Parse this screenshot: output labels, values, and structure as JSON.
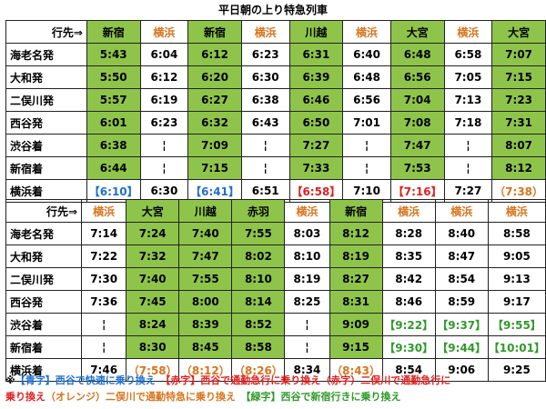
{
  "title": "平日朝の上り特急列車",
  "header_label": "行先⇒",
  "colors": {
    "green_bg": "#8fc44a",
    "yokohama_text": "#d8741c",
    "blue": "#1e6fd0",
    "red": "#e02020",
    "orange": "#d8741c",
    "green_text": "#2f9a2a"
  },
  "tables": [
    {
      "dest": [
        {
          "t": "新宿",
          "c": "g"
        },
        {
          "t": "横浜",
          "c": "hk"
        },
        {
          "t": "新宿",
          "c": "g"
        },
        {
          "t": "横浜",
          "c": "hk"
        },
        {
          "t": "川越",
          "c": "g"
        },
        {
          "t": "横浜",
          "c": "hk"
        },
        {
          "t": "大宮",
          "c": "g"
        },
        {
          "t": "横浜",
          "c": "hk"
        },
        {
          "t": "大宮",
          "c": "g"
        }
      ],
      "rows": [
        {
          "label": "海老名発",
          "cells": [
            {
              "t": "5:43",
              "c": "g"
            },
            {
              "t": "6:04",
              "c": ""
            },
            {
              "t": "6:12",
              "c": "g"
            },
            {
              "t": "6:23",
              "c": ""
            },
            {
              "t": "6:31",
              "c": "g"
            },
            {
              "t": "6:40",
              "c": ""
            },
            {
              "t": "6:48",
              "c": "g"
            },
            {
              "t": "6:58",
              "c": ""
            },
            {
              "t": "7:07",
              "c": "g"
            }
          ]
        },
        {
          "label": "大和発",
          "cells": [
            {
              "t": "5:50",
              "c": "g"
            },
            {
              "t": "6:12",
              "c": ""
            },
            {
              "t": "6:20",
              "c": "g"
            },
            {
              "t": "6:30",
              "c": ""
            },
            {
              "t": "6:39",
              "c": "g"
            },
            {
              "t": "6:48",
              "c": ""
            },
            {
              "t": "6:56",
              "c": "g"
            },
            {
              "t": "7:05",
              "c": ""
            },
            {
              "t": "7:15",
              "c": "g"
            }
          ]
        },
        {
          "label": "二俣川発",
          "cells": [
            {
              "t": "5:57",
              "c": "g"
            },
            {
              "t": "6:19",
              "c": ""
            },
            {
              "t": "6:27",
              "c": "g"
            },
            {
              "t": "6:38",
              "c": ""
            },
            {
              "t": "6:46",
              "c": "g"
            },
            {
              "t": "6:56",
              "c": ""
            },
            {
              "t": "7:04",
              "c": "g"
            },
            {
              "t": "7:13",
              "c": ""
            },
            {
              "t": "7:23",
              "c": "g"
            }
          ]
        },
        {
          "label": "西谷発",
          "cells": [
            {
              "t": "6:01",
              "c": "g"
            },
            {
              "t": "6:23",
              "c": ""
            },
            {
              "t": "6:32",
              "c": "g"
            },
            {
              "t": "6:43",
              "c": ""
            },
            {
              "t": "6:50",
              "c": "g"
            },
            {
              "t": "7:01",
              "c": ""
            },
            {
              "t": "7:08",
              "c": "g"
            },
            {
              "t": "7:18",
              "c": ""
            },
            {
              "t": "7:31",
              "c": "g"
            }
          ]
        },
        {
          "label": "渋谷着",
          "cells": [
            {
              "t": "6:38",
              "c": "g"
            },
            {
              "t": "¦",
              "c": ""
            },
            {
              "t": "7:09",
              "c": "g"
            },
            {
              "t": "¦",
              "c": ""
            },
            {
              "t": "7:27",
              "c": "g"
            },
            {
              "t": "¦",
              "c": ""
            },
            {
              "t": "7:47",
              "c": "g"
            },
            {
              "t": "¦",
              "c": ""
            },
            {
              "t": "8:07",
              "c": "g"
            }
          ]
        },
        {
          "label": "新宿着",
          "cells": [
            {
              "t": "6:44",
              "c": "g"
            },
            {
              "t": "¦",
              "c": ""
            },
            {
              "t": "7:15",
              "c": "g"
            },
            {
              "t": "¦",
              "c": ""
            },
            {
              "t": "7:33",
              "c": "g"
            },
            {
              "t": "¦",
              "c": ""
            },
            {
              "t": "7:53",
              "c": "g"
            },
            {
              "t": "¦",
              "c": ""
            },
            {
              "t": "8:12",
              "c": "g"
            }
          ]
        },
        {
          "label": "横浜着",
          "cells": [
            {
              "t": "【6:10】",
              "c": "blue"
            },
            {
              "t": "6:30",
              "c": ""
            },
            {
              "t": "【6:41】",
              "c": "blue"
            },
            {
              "t": "6:51",
              "c": ""
            },
            {
              "t": "【6:58】",
              "c": "red"
            },
            {
              "t": "7:10",
              "c": ""
            },
            {
              "t": "【7:16】",
              "c": "red"
            },
            {
              "t": "7:27",
              "c": ""
            },
            {
              "t": "（7:38）",
              "c": "orange"
            }
          ]
        }
      ]
    },
    {
      "dest": [
        {
          "t": "横浜",
          "c": "hk"
        },
        {
          "t": "大宮",
          "c": "g"
        },
        {
          "t": "川越",
          "c": "g"
        },
        {
          "t": "赤羽",
          "c": "g"
        },
        {
          "t": "横浜",
          "c": "hk"
        },
        {
          "t": "新宿",
          "c": "g"
        },
        {
          "t": "横浜",
          "c": "hk"
        },
        {
          "t": "横浜",
          "c": "hk"
        },
        {
          "t": "横浜",
          "c": "hk"
        }
      ],
      "rows": [
        {
          "label": "海老名発",
          "cells": [
            {
              "t": "7:14",
              "c": ""
            },
            {
              "t": "7:24",
              "c": "g"
            },
            {
              "t": "7:40",
              "c": "g"
            },
            {
              "t": "7:55",
              "c": "g"
            },
            {
              "t": "8:03",
              "c": ""
            },
            {
              "t": "8:12",
              "c": "g"
            },
            {
              "t": "8:28",
              "c": ""
            },
            {
              "t": "8:40",
              "c": ""
            },
            {
              "t": "8:58",
              "c": ""
            }
          ]
        },
        {
          "label": "大和発",
          "cells": [
            {
              "t": "7:22",
              "c": ""
            },
            {
              "t": "7:32",
              "c": "g"
            },
            {
              "t": "7:47",
              "c": "g"
            },
            {
              "t": "8:02",
              "c": "g"
            },
            {
              "t": "8:10",
              "c": ""
            },
            {
              "t": "8:19",
              "c": "g"
            },
            {
              "t": "8:35",
              "c": ""
            },
            {
              "t": "8:47",
              "c": ""
            },
            {
              "t": "9:05",
              "c": ""
            }
          ]
        },
        {
          "label": "二俣川発",
          "cells": [
            {
              "t": "7:30",
              "c": ""
            },
            {
              "t": "7:40",
              "c": "g"
            },
            {
              "t": "7:55",
              "c": "g"
            },
            {
              "t": "8:10",
              "c": "g"
            },
            {
              "t": "8:19",
              "c": ""
            },
            {
              "t": "8:27",
              "c": "g"
            },
            {
              "t": "8:42",
              "c": ""
            },
            {
              "t": "8:54",
              "c": ""
            },
            {
              "t": "9:13",
              "c": ""
            }
          ]
        },
        {
          "label": "西谷発",
          "cells": [
            {
              "t": "7:36",
              "c": ""
            },
            {
              "t": "7:45",
              "c": "g"
            },
            {
              "t": "8:00",
              "c": "g"
            },
            {
              "t": "8:14",
              "c": "g"
            },
            {
              "t": "8:25",
              "c": ""
            },
            {
              "t": "8:31",
              "c": "g"
            },
            {
              "t": "8:46",
              "c": ""
            },
            {
              "t": "8:59",
              "c": ""
            },
            {
              "t": "9:17",
              "c": ""
            }
          ]
        },
        {
          "label": "渋谷着",
          "cells": [
            {
              "t": "¦",
              "c": ""
            },
            {
              "t": "8:24",
              "c": "g"
            },
            {
              "t": "8:39",
              "c": "g"
            },
            {
              "t": "8:52",
              "c": "g"
            },
            {
              "t": "¦",
              "c": ""
            },
            {
              "t": "9:09",
              "c": "g"
            },
            {
              "t": "【9:22】",
              "c": "green"
            },
            {
              "t": "【9:37】",
              "c": "green"
            },
            {
              "t": "【9:55】",
              "c": "green"
            }
          ]
        },
        {
          "label": "新宿着",
          "cells": [
            {
              "t": "¦",
              "c": ""
            },
            {
              "t": "8:30",
              "c": "g"
            },
            {
              "t": "8:45",
              "c": "g"
            },
            {
              "t": "8:58",
              "c": "g"
            },
            {
              "t": "¦",
              "c": ""
            },
            {
              "t": "9:15",
              "c": "g"
            },
            {
              "t": "【9:30】",
              "c": "green"
            },
            {
              "t": "【9:44】",
              "c": "green"
            },
            {
              "t": "【10:01】",
              "c": "green"
            }
          ]
        },
        {
          "label": "横浜着",
          "cells": [
            {
              "t": "7:46",
              "c": ""
            },
            {
              "t": "（7:58）",
              "c": "orange"
            },
            {
              "t": "（8:12）",
              "c": "orange"
            },
            {
              "t": "（8:26）",
              "c": "orange"
            },
            {
              "t": "8:34",
              "c": ""
            },
            {
              "t": "（8:43）",
              "c": "orange"
            },
            {
              "t": "8:54",
              "c": ""
            },
            {
              "t": "9:06",
              "c": ""
            },
            {
              "t": "9:25",
              "c": ""
            }
          ]
        }
      ]
    }
  ],
  "legend": {
    "mark": "※",
    "blue_key": "【青字】",
    "blue_text": "西谷で快速に乗り換え　",
    "red_key": "【赤字】",
    "red_text": "西谷で通勤急行に乗り換え（赤字）二俣川で通勤急行に",
    "red_text2": "乗り換え",
    "orange_text": "（オレンジ）二俣川で通勤特急に乗り換え　",
    "green_key": "【緑字】",
    "green_text": "西谷で新宿行きに乗り換え"
  }
}
